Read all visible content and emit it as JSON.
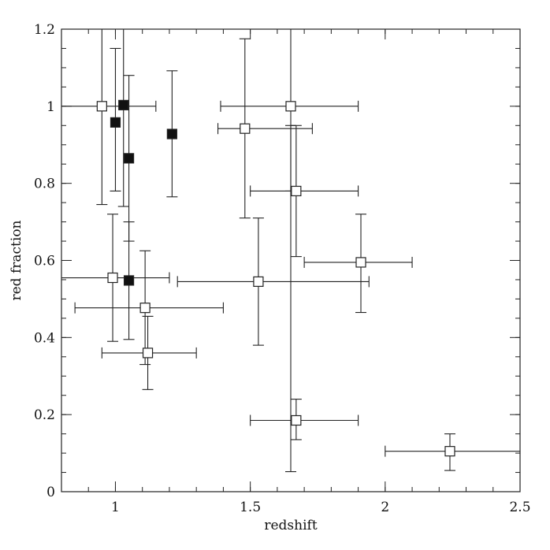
{
  "chart_data": {
    "type": "scatter",
    "title": "",
    "xlabel": "redshift",
    "ylabel": "red fraction",
    "xlim": [
      0.8,
      2.5
    ],
    "ylim": [
      0,
      1.2
    ],
    "xticks": [
      1,
      1.5,
      2,
      2.5
    ],
    "xtick_labels": [
      "1",
      "1.5",
      "2",
      "2.5"
    ],
    "yticks": [
      0,
      0.2,
      0.4,
      0.6,
      0.8,
      1,
      1.2
    ],
    "ytick_labels": [
      "0",
      "0.2",
      "0.4",
      "0.6",
      "0.8",
      "1",
      "1.2"
    ],
    "x_minor_step": 0.1,
    "y_minor_step": 0.05,
    "grid": false,
    "series": [
      {
        "marker": "open-square",
        "points": [
          {
            "x": 0.95,
            "y": 1.0,
            "xerr": [
              0.8,
              1.15
            ],
            "yerr": [
              0.745,
              1.2
            ]
          },
          {
            "x": 0.99,
            "y": 0.555,
            "xerr": [
              0.8,
              1.2
            ],
            "yerr": [
              0.39,
              0.72
            ]
          },
          {
            "x": 1.11,
            "y": 0.477,
            "xerr": [
              0.85,
              1.4
            ],
            "yerr": [
              0.33,
              0.625
            ]
          },
          {
            "x": 1.12,
            "y": 0.36,
            "xerr": [
              0.95,
              1.3
            ],
            "yerr": [
              0.265,
              0.455
            ]
          },
          {
            "x": 1.48,
            "y": 0.942,
            "xerr": [
              1.38,
              1.73
            ],
            "yerr": [
              0.71,
              1.175
            ]
          },
          {
            "x": 1.53,
            "y": 0.545,
            "xerr": [
              1.23,
              1.94
            ],
            "yerr": [
              0.38,
              0.71
            ]
          },
          {
            "x": 1.65,
            "y": 1.0,
            "xerr": [
              1.39,
              1.9
            ],
            "yerr": [
              0.78,
              1.2
            ]
          },
          {
            "x": 1.67,
            "y": 0.78,
            "xerr": [
              1.5,
              1.9
            ],
            "yerr": [
              0.61,
              0.95
            ]
          },
          {
            "x": 1.67,
            "y": 0.185,
            "xerr": [
              1.5,
              1.9
            ],
            "yerr": [
              0.135,
              0.24
            ]
          },
          {
            "x": 1.91,
            "y": 0.595,
            "xerr": [
              1.7,
              2.1
            ],
            "yerr": [
              0.465,
              0.72
            ]
          },
          {
            "x": 2.24,
            "y": 0.105,
            "xerr": [
              2.0,
              2.5
            ],
            "yerr": [
              0.055,
              0.15
            ]
          },
          {
            "x": 1.65,
            "y": 0.545,
            "xerr": null,
            "yerr": [
              0.052,
              0.95
            ]
          }
        ]
      },
      {
        "marker": "filled-square",
        "points": [
          {
            "x": 1.0,
            "y": 0.958,
            "xerr": null,
            "yerr": [
              0.78,
              1.15
            ]
          },
          {
            "x": 1.03,
            "y": 1.003,
            "xerr": null,
            "yerr": [
              0.74,
              1.2
            ]
          },
          {
            "x": 1.05,
            "y": 0.865,
            "xerr": null,
            "yerr": [
              0.65,
              1.08
            ]
          },
          {
            "x": 1.05,
            "y": 0.548,
            "xerr": null,
            "yerr": [
              0.395,
              0.7
            ]
          },
          {
            "x": 1.21,
            "y": 0.928,
            "xerr": null,
            "yerr": [
              0.765,
              1.092
            ]
          }
        ]
      }
    ]
  }
}
